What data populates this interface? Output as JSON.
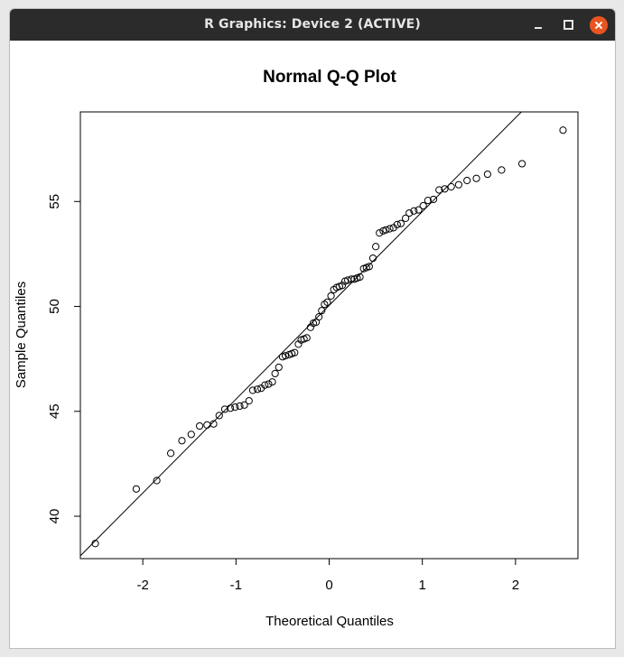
{
  "window": {
    "title": "R Graphics: Device 2 (ACTIVE)",
    "controls": {
      "minimize": "minimize",
      "maximize": "maximize",
      "close": "close"
    },
    "close_color": "#e95420"
  },
  "chart_data": {
    "type": "scatter",
    "title": "Normal Q-Q Plot",
    "xlabel": "Theoretical Quantiles",
    "ylabel": "Sample Quantiles",
    "xlim": [
      -2.67,
      2.67
    ],
    "ylim": [
      37.98,
      59.27
    ],
    "xticks": [
      -2,
      -1,
      0,
      1,
      2
    ],
    "xtick_labels": [
      "-2",
      "-1",
      "0",
      "1",
      "2"
    ],
    "yticks": [
      40,
      45,
      50,
      55
    ],
    "ytick_labels": [
      "40",
      "45",
      "50",
      "55"
    ],
    "grid": false,
    "legend": "none",
    "reference_line": {
      "slope": 4.47,
      "intercept": 50.05
    },
    "points": [
      [
        -2.51,
        38.7
      ],
      [
        -2.07,
        41.3
      ],
      [
        -1.85,
        41.7
      ],
      [
        -1.7,
        43.0
      ],
      [
        -1.58,
        43.6
      ],
      [
        -1.48,
        43.9
      ],
      [
        -1.39,
        44.3
      ],
      [
        -1.31,
        44.35
      ],
      [
        -1.24,
        44.4
      ],
      [
        -1.18,
        44.8
      ],
      [
        -1.12,
        45.1
      ],
      [
        -1.06,
        45.15
      ],
      [
        -1.01,
        45.2
      ],
      [
        -0.96,
        45.25
      ],
      [
        -0.91,
        45.3
      ],
      [
        -0.86,
        45.5
      ],
      [
        -0.82,
        46.0
      ],
      [
        -0.77,
        46.05
      ],
      [
        -0.73,
        46.1
      ],
      [
        -0.69,
        46.25
      ],
      [
        -0.65,
        46.3
      ],
      [
        -0.61,
        46.4
      ],
      [
        -0.58,
        46.8
      ],
      [
        -0.54,
        47.1
      ],
      [
        -0.5,
        47.6
      ],
      [
        -0.47,
        47.65
      ],
      [
        -0.43,
        47.7
      ],
      [
        -0.4,
        47.75
      ],
      [
        -0.37,
        47.8
      ],
      [
        -0.33,
        48.2
      ],
      [
        -0.3,
        48.4
      ],
      [
        -0.27,
        48.45
      ],
      [
        -0.24,
        48.5
      ],
      [
        -0.2,
        49.0
      ],
      [
        -0.17,
        49.2
      ],
      [
        -0.14,
        49.25
      ],
      [
        -0.11,
        49.5
      ],
      [
        -0.08,
        49.8
      ],
      [
        -0.05,
        50.1
      ],
      [
        -0.02,
        50.2
      ],
      [
        0.02,
        50.5
      ],
      [
        0.05,
        50.8
      ],
      [
        0.08,
        50.9
      ],
      [
        0.11,
        50.95
      ],
      [
        0.14,
        51.0
      ],
      [
        0.17,
        51.2
      ],
      [
        0.2,
        51.25
      ],
      [
        0.24,
        51.3
      ],
      [
        0.27,
        51.3
      ],
      [
        0.3,
        51.35
      ],
      [
        0.33,
        51.4
      ],
      [
        0.37,
        51.8
      ],
      [
        0.4,
        51.85
      ],
      [
        0.43,
        51.9
      ],
      [
        0.47,
        52.3
      ],
      [
        0.5,
        52.85
      ],
      [
        0.54,
        53.5
      ],
      [
        0.58,
        53.6
      ],
      [
        0.61,
        53.65
      ],
      [
        0.65,
        53.7
      ],
      [
        0.69,
        53.75
      ],
      [
        0.73,
        53.9
      ],
      [
        0.77,
        53.95
      ],
      [
        0.82,
        54.2
      ],
      [
        0.86,
        54.45
      ],
      [
        0.91,
        54.55
      ],
      [
        0.96,
        54.6
      ],
      [
        1.01,
        54.8
      ],
      [
        1.06,
        55.05
      ],
      [
        1.12,
        55.1
      ],
      [
        1.18,
        55.55
      ],
      [
        1.24,
        55.6
      ],
      [
        1.31,
        55.7
      ],
      [
        1.39,
        55.8
      ],
      [
        1.48,
        56.0
      ],
      [
        1.58,
        56.1
      ],
      [
        1.7,
        56.3
      ],
      [
        1.85,
        56.5
      ],
      [
        2.07,
        56.8
      ],
      [
        2.51,
        58.4
      ]
    ]
  }
}
